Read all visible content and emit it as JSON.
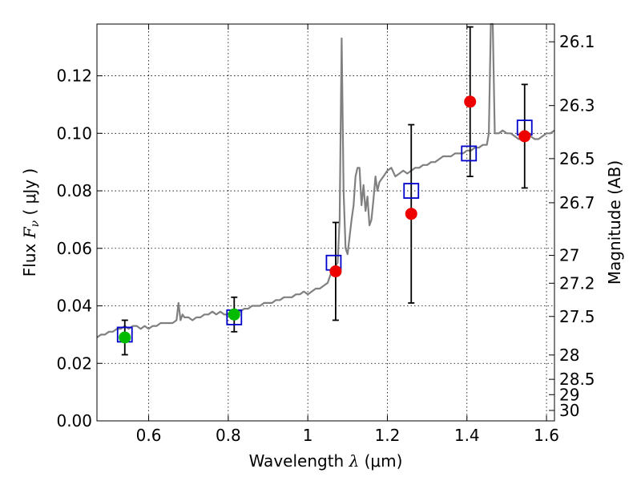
{
  "chart_data": {
    "type": "scatter",
    "xlabel": {
      "prefix": "Wavelength ",
      "symbol": "λ",
      "unit": " (μm)"
    },
    "ylabel": {
      "prefix": "Flux ",
      "symbol": "F",
      "sub": "ν",
      "unit": " ( μJy )"
    },
    "y2label": "Magnitude (AB)",
    "xlim": [
      0.47,
      1.62
    ],
    "ylim": [
      0.0,
      0.138
    ],
    "xticks": [
      {
        "value": 0.6,
        "label": "0.6"
      },
      {
        "value": 0.8,
        "label": "0.8"
      },
      {
        "value": 1.0,
        "label": "1"
      },
      {
        "value": 1.2,
        "label": "1.2"
      },
      {
        "value": 1.4,
        "label": "1.4"
      },
      {
        "value": 1.6,
        "label": "1.6"
      }
    ],
    "yticks": [
      {
        "value": 0.0,
        "label": "0.00"
      },
      {
        "value": 0.02,
        "label": "0.02"
      },
      {
        "value": 0.04,
        "label": "0.04"
      },
      {
        "value": 0.06,
        "label": "0.06"
      },
      {
        "value": 0.08,
        "label": "0.08"
      },
      {
        "value": 0.1,
        "label": "0.10"
      },
      {
        "value": 0.12,
        "label": "0.12"
      }
    ],
    "y2ticks": [
      {
        "value": 26.1,
        "label": "26.1"
      },
      {
        "value": 26.3,
        "label": "26.3"
      },
      {
        "value": 26.5,
        "label": "26.5"
      },
      {
        "value": 26.7,
        "label": "26.7"
      },
      {
        "value": 27.0,
        "label": "27"
      },
      {
        "value": 27.2,
        "label": "27.2"
      },
      {
        "value": 27.5,
        "label": "27.5"
      },
      {
        "value": 28.0,
        "label": "28"
      },
      {
        "value": 28.5,
        "label": "28.5"
      },
      {
        "value": 29.0,
        "label": "29"
      },
      {
        "value": 30.0,
        "label": "30"
      }
    ],
    "grid": true,
    "colors": {
      "spectrum": "#808080",
      "model": "#0000cc",
      "green": "#00bb00",
      "red": "#ee0000",
      "error": "#000000"
    },
    "series": [
      {
        "name": "template spectrum",
        "kind": "line",
        "x": [
          0.47,
          0.48,
          0.49,
          0.5,
          0.51,
          0.52,
          0.53,
          0.54,
          0.55,
          0.56,
          0.57,
          0.58,
          0.59,
          0.6,
          0.61,
          0.62,
          0.63,
          0.64,
          0.65,
          0.66,
          0.67,
          0.675,
          0.68,
          0.685,
          0.69,
          0.7,
          0.71,
          0.72,
          0.73,
          0.74,
          0.75,
          0.76,
          0.77,
          0.78,
          0.79,
          0.8,
          0.81,
          0.82,
          0.83,
          0.84,
          0.85,
          0.86,
          0.87,
          0.88,
          0.89,
          0.9,
          0.91,
          0.92,
          0.93,
          0.94,
          0.95,
          0.96,
          0.97,
          0.98,
          0.99,
          1.0,
          1.01,
          1.02,
          1.03,
          1.04,
          1.05,
          1.06,
          1.07,
          1.075,
          1.08,
          1.085,
          1.09,
          1.095,
          1.1,
          1.105,
          1.11,
          1.115,
          1.12,
          1.125,
          1.13,
          1.135,
          1.14,
          1.145,
          1.15,
          1.155,
          1.16,
          1.165,
          1.17,
          1.175,
          1.18,
          1.19,
          1.2,
          1.21,
          1.22,
          1.23,
          1.24,
          1.25,
          1.26,
          1.27,
          1.28,
          1.29,
          1.3,
          1.31,
          1.32,
          1.33,
          1.34,
          1.35,
          1.36,
          1.37,
          1.38,
          1.39,
          1.4,
          1.41,
          1.42,
          1.43,
          1.44,
          1.45,
          1.455,
          1.46,
          1.465,
          1.47,
          1.48,
          1.49,
          1.5,
          1.51,
          1.52,
          1.53,
          1.54,
          1.55,
          1.56,
          1.57,
          1.58,
          1.59,
          1.6,
          1.61,
          1.62
        ],
        "y": [
          0.029,
          0.03,
          0.03,
          0.031,
          0.031,
          0.032,
          0.032,
          0.033,
          0.032,
          0.033,
          0.033,
          0.032,
          0.033,
          0.032,
          0.033,
          0.033,
          0.034,
          0.034,
          0.034,
          0.034,
          0.035,
          0.041,
          0.035,
          0.037,
          0.036,
          0.036,
          0.035,
          0.036,
          0.036,
          0.037,
          0.037,
          0.038,
          0.037,
          0.038,
          0.037,
          0.037,
          0.038,
          0.038,
          0.038,
          0.039,
          0.039,
          0.04,
          0.04,
          0.04,
          0.041,
          0.041,
          0.041,
          0.042,
          0.042,
          0.043,
          0.043,
          0.043,
          0.044,
          0.044,
          0.045,
          0.044,
          0.045,
          0.046,
          0.046,
          0.047,
          0.048,
          0.052,
          0.054,
          0.055,
          0.07,
          0.133,
          0.08,
          0.06,
          0.058,
          0.064,
          0.07,
          0.075,
          0.085,
          0.088,
          0.088,
          0.075,
          0.082,
          0.073,
          0.078,
          0.068,
          0.07,
          0.077,
          0.085,
          0.08,
          0.083,
          0.085,
          0.087,
          0.088,
          0.085,
          0.086,
          0.087,
          0.086,
          0.087,
          0.088,
          0.088,
          0.089,
          0.089,
          0.09,
          0.09,
          0.091,
          0.092,
          0.092,
          0.092,
          0.093,
          0.093,
          0.093,
          0.094,
          0.094,
          0.095,
          0.095,
          0.096,
          0.096,
          0.1,
          0.138,
          0.138,
          0.1,
          0.1,
          0.101,
          0.1,
          0.1,
          0.099,
          0.098,
          0.098,
          0.099,
          0.099,
          0.098,
          0.098,
          0.099,
          0.1,
          0.1,
          0.101
        ]
      },
      {
        "name": "model photometry",
        "kind": "open-square",
        "x": [
          0.54,
          0.815,
          1.065,
          1.26,
          1.405,
          1.545
        ],
        "y": [
          0.03,
          0.036,
          0.055,
          0.08,
          0.093,
          0.102
        ]
      },
      {
        "name": "observed (green)",
        "kind": "filled-circle",
        "x": [
          0.54,
          0.815
        ],
        "y": [
          0.029,
          0.037
        ],
        "err": [
          0.006,
          0.006
        ]
      },
      {
        "name": "observed (red)",
        "kind": "filled-circle",
        "x": [
          1.07,
          1.26,
          1.408,
          1.545
        ],
        "y": [
          0.052,
          0.072,
          0.111,
          0.099
        ],
        "err": [
          0.017,
          0.031,
          0.026,
          0.018
        ]
      }
    ]
  }
}
